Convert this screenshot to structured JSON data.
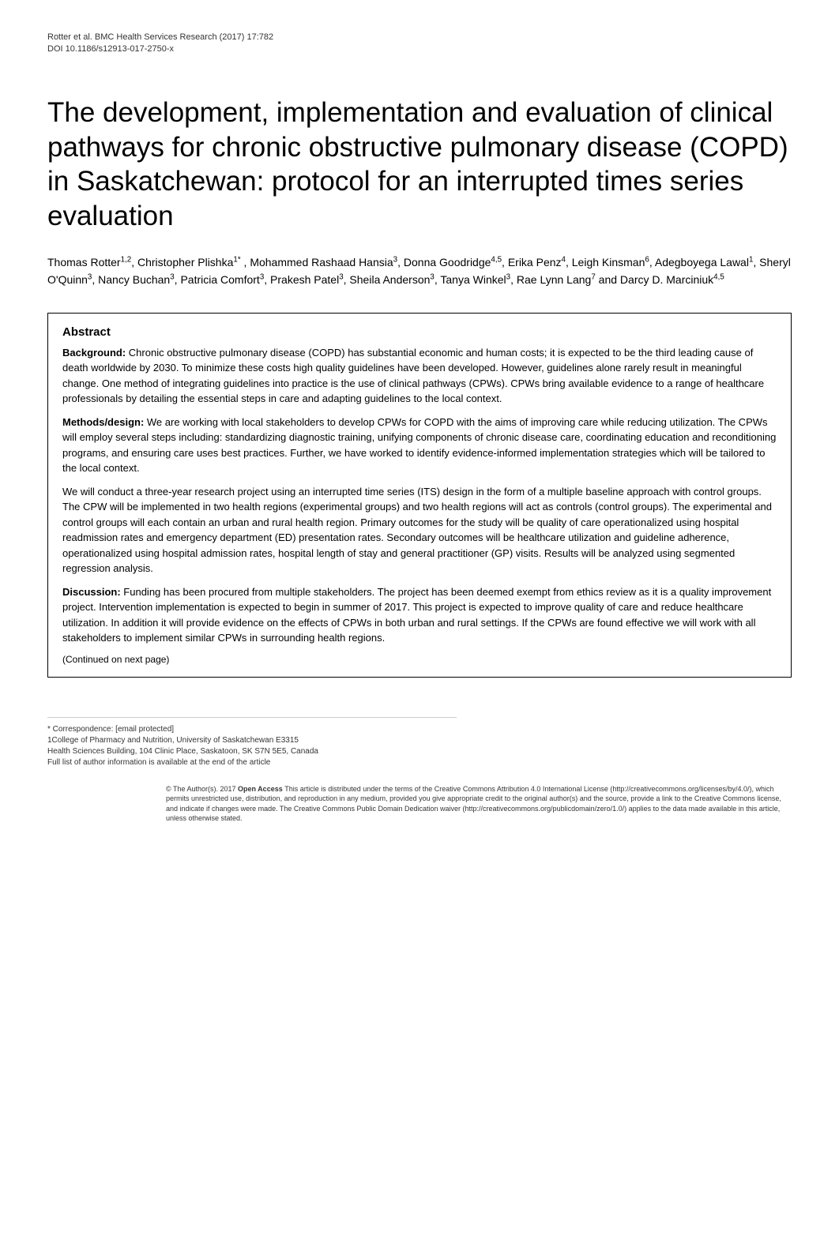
{
  "header": {
    "journal_line1": "Rotter et al. BMC Health Services Research  (2017) 17:782",
    "journal_line2": "DOI 10.1186/s12913-017-2750-x"
  },
  "title": "The development, implementation and evaluation of clinical pathways for chronic obstructive pulmonary disease (COPD) in Saskatchewan: protocol for an interrupted times series evaluation",
  "authors_html": "Thomas Rotter<sup>1,2</sup>, Christopher Plishka<sup>1*</sup>  , Mohammed Rashaad Hansia<sup>3</sup>, Donna Goodridge<sup>4,5</sup>, Erika Penz<sup>4</sup>, Leigh Kinsman<sup>6</sup>, Adegboyega Lawal<sup>1</sup>, Sheryl O'Quinn<sup>3</sup>, Nancy Buchan<sup>3</sup>, Patricia Comfort<sup>3</sup>, Prakesh Patel<sup>3</sup>, Sheila Anderson<sup>3</sup>, Tanya Winkel<sup>3</sup>, Rae Lynn Lang<sup>7</sup> and Darcy D. Marciniuk<sup>4,5</sup>",
  "abstract": {
    "heading": "Abstract",
    "background_label": "Background:",
    "background_text": " Chronic obstructive pulmonary disease (COPD) has substantial economic and human costs; it is expected to be the third leading cause of death worldwide by 2030. To minimize these costs high quality guidelines have been developed. However, guidelines alone rarely result in meaningful change. One method of integrating guidelines into practice is the use of clinical pathways (CPWs). CPWs bring available evidence to a range of healthcare professionals by detailing the essential steps in care and adapting guidelines to the local context.",
    "methods_label": "Methods/design:",
    "methods_text1": " We are working with local stakeholders to develop CPWs for COPD with the aims of improving care while reducing utilization. The CPWs will employ several steps including: standardizing diagnostic training, unifying components of chronic disease care, coordinating education and reconditioning programs, and ensuring care uses best practices. Further, we have worked to identify evidence-informed implementation strategies which will be tailored to the local context.",
    "methods_text2": "We will conduct a three-year research project using an interrupted time series (ITS) design in the form of a multiple baseline approach with control groups. The CPW will be implemented in two health regions (experimental groups) and two health regions will act as controls (control groups). The experimental and control groups will each contain an urban and rural health region. Primary outcomes for the study will be quality of care operationalized using hospital readmission rates and emergency department (ED) presentation rates. Secondary outcomes will be healthcare utilization and guideline adherence, operationalized using hospital admission rates, hospital length of stay and general practitioner (GP) visits. Results will be analyzed using segmented regression analysis.",
    "discussion_label": "Discussion:",
    "discussion_text": " Funding has been procured from multiple stakeholders. The project has been deemed exempt from ethics review as it is a quality improvement project. Intervention implementation is expected to begin in summer of 2017. This project is expected to improve quality of care and reduce healthcare utilization. In addition it will provide evidence on the effects of CPWs in both urban and rural settings. If the CPWs are found effective we will work with all stakeholders to implement similar CPWs in surrounding health regions.",
    "continued": "(Continued on next page)"
  },
  "correspondence": {
    "line1": "* Correspondence: [email protected]",
    "line2": "1College of Pharmacy and Nutrition, University of Saskatchewan E3315",
    "line3": "Health Sciences Building, 104 Clinic Place, Saskatoon, SK S7N 5E5, Canada",
    "line4": "Full list of author information is available at the end of the article"
  },
  "license": {
    "prefix": "© The Author(s). 2017 ",
    "open_access": "Open Access ",
    "text": "This article is distributed under the terms of the Creative Commons Attribution 4.0 International License (http://creativecommons.org/licenses/by/4.0/), which permits unrestricted use, distribution, and reproduction in any medium, provided you give appropriate credit to the original author(s) and the source, provide a link to the Creative Commons license, and indicate if changes were made. The Creative Commons Public Domain Dedication waiver (http://creativecommons.org/publicdomain/zero/1.0/) applies to the data made available in this article, unless otherwise stated."
  }
}
